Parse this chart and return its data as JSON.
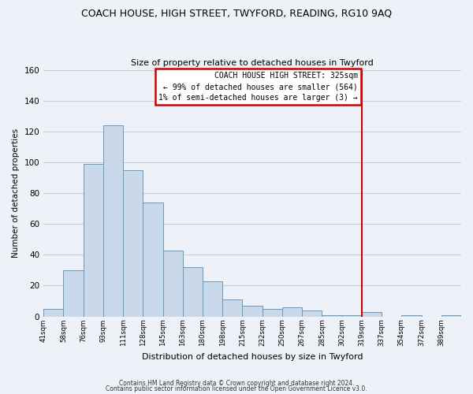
{
  "title": "COACH HOUSE, HIGH STREET, TWYFORD, READING, RG10 9AQ",
  "subtitle": "Size of property relative to detached houses in Twyford",
  "xlabel": "Distribution of detached houses by size in Twyford",
  "ylabel": "Number of detached properties",
  "bar_color": "#c9d9ea",
  "bar_edge_color": "#6699bb",
  "bin_labels": [
    "41sqm",
    "58sqm",
    "76sqm",
    "93sqm",
    "111sqm",
    "128sqm",
    "145sqm",
    "163sqm",
    "180sqm",
    "198sqm",
    "215sqm",
    "232sqm",
    "250sqm",
    "267sqm",
    "285sqm",
    "302sqm",
    "319sqm",
    "337sqm",
    "354sqm",
    "372sqm",
    "389sqm"
  ],
  "bin_values": [
    5,
    30,
    99,
    124,
    95,
    74,
    43,
    32,
    23,
    11,
    7,
    5,
    6,
    4,
    1,
    1,
    3,
    0,
    1,
    0,
    1
  ],
  "ylim": [
    0,
    160
  ],
  "yticks": [
    0,
    20,
    40,
    60,
    80,
    100,
    120,
    140,
    160
  ],
  "property_line_label": "319sqm",
  "annotation_title": "COACH HOUSE HIGH STREET: 325sqm",
  "annotation_line1": "← 99% of detached houses are smaller (564)",
  "annotation_line2": "1% of semi-detached houses are larger (3) →",
  "vline_color": "#cc0000",
  "ann_edge_color": "#cc0000",
  "ann_face_color": "#ffffff",
  "grid_color": "#ccccd4",
  "background_color": "#eef2f8",
  "footer1": "Contains HM Land Registry data © Crown copyright and database right 2024.",
  "footer2": "Contains public sector information licensed under the Open Government Licence v3.0."
}
